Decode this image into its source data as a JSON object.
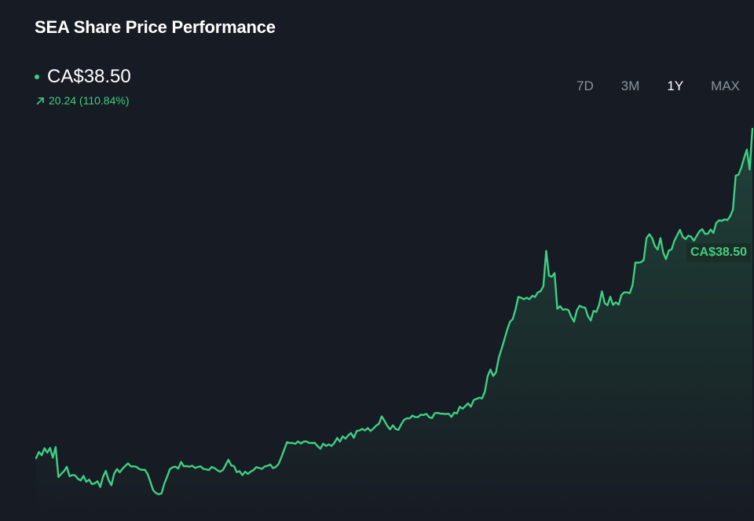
{
  "header": {
    "title": "SEA Share Price Performance",
    "price": "CA$38.50",
    "change": "20.24 (110.84%)"
  },
  "range_tabs": [
    {
      "label": "7D",
      "active": false
    },
    {
      "label": "3M",
      "active": false
    },
    {
      "label": "1Y",
      "active": true
    },
    {
      "label": "MAX",
      "active": false
    }
  ],
  "colors": {
    "background": "#171b23",
    "line": "#3ecf84",
    "muted_tab": "#8b93a1"
  },
  "icons": {
    "change": "trend-up-arrow-icon",
    "marker": "dot-icon"
  },
  "chart_data": {
    "type": "area",
    "title": "SEA Share Price Performance",
    "xlabel": "",
    "ylabel": "",
    "grid": false,
    "last_value_label": "CA$38.50",
    "ylim": [
      15,
      45
    ],
    "series": [
      {
        "values": [
          18.27,
          18.65,
          18.45,
          18.88,
          18.61,
          18.9,
          18.3,
          18.95,
          17.11,
          17.31,
          17.47,
          17.74,
          17.16,
          17.24,
          17.21,
          17.0,
          16.9,
          17.18,
          16.82,
          16.95,
          16.68,
          16.72,
          16.85,
          16.5,
          17.12,
          17.49,
          16.92,
          16.61,
          17.32,
          17.6,
          17.4,
          17.62,
          17.8,
          17.95,
          17.76,
          17.77,
          17.74,
          17.6,
          17.55,
          17.56,
          17.3,
          16.8,
          16.3,
          16.13,
          16.05,
          16.11,
          16.71,
          17.13,
          17.6,
          17.71,
          17.75,
          17.63,
          18.04,
          17.77,
          17.78,
          17.75,
          17.81,
          17.67,
          17.73,
          17.77,
          17.61,
          17.58,
          17.54,
          17.73,
          17.66,
          17.53,
          17.44,
          17.54,
          17.85,
          18.17,
          17.83,
          17.78,
          17.41,
          17.47,
          17.23,
          17.44,
          17.3,
          17.45,
          17.54,
          17.72,
          17.67,
          17.61,
          17.76,
          17.8,
          17.88,
          17.66,
          17.73,
          17.92,
          18.33,
          18.79,
          19.25,
          19.2,
          19.2,
          19.15,
          19.3,
          19.17,
          19.29,
          19.3,
          19.2,
          19.2,
          19.21,
          19.0,
          18.85,
          19.16,
          19.02,
          19.12,
          19.02,
          19.21,
          19.51,
          19.29,
          19.61,
          19.47,
          19.67,
          19.81,
          19.52,
          19.94,
          19.97,
          20.07,
          19.97,
          20.12,
          19.94,
          20.09,
          20.27,
          20.38,
          20.84,
          20.56,
          20.25,
          20.04,
          20.29,
          20.06,
          20.01,
          20.35,
          20.62,
          20.72,
          20.71,
          20.88,
          20.79,
          20.79,
          20.94,
          20.92,
          20.99,
          20.79,
          20.73,
          21.03,
          21.05,
          21.01,
          21.0,
          20.98,
          21.0,
          20.8,
          21.07,
          21.02,
          21.43,
          21.31,
          21.47,
          21.64,
          21.43,
          21.84,
          21.91,
          21.98,
          21.94,
          22.35,
          23.31,
          23.71,
          23.32,
          23.54,
          24.44,
          24.98,
          25.55,
          26.15,
          26.64,
          26.81,
          27.4,
          28.17,
          28.12,
          28.03,
          28.12,
          28.03,
          28.24,
          28.17,
          28.45,
          28.52,
          28.84,
          31.0,
          29.48,
          29.41,
          29.64,
          27.44,
          27.6,
          27.38,
          27.42,
          27.36,
          26.96,
          26.65,
          27.34,
          27.63,
          27.54,
          27.51,
          26.98,
          26.72,
          27.31,
          27.25,
          27.69,
          28.51,
          27.79,
          27.66,
          28.18,
          27.68,
          27.84,
          27.69,
          28.29,
          28.45,
          28.45,
          28.4,
          28.9,
          30.28,
          30.27,
          30.3,
          30.44,
          31.78,
          32.02,
          31.79,
          31.29,
          31.08,
          31.78,
          30.89,
          30.49,
          31.02,
          31.09,
          31.62,
          31.96,
          32.29,
          31.86,
          31.72,
          31.93,
          31.87,
          31.62,
          31.92,
          32.2,
          32.33,
          32.04,
          32.05,
          32.31,
          32.1,
          32.71,
          32.87,
          32.84,
          32.93,
          32.89,
          33.12,
          33.53,
          35.61,
          35.68,
          36.1,
          36.7,
          37.22,
          35.99,
          38.5
        ]
      }
    ]
  }
}
